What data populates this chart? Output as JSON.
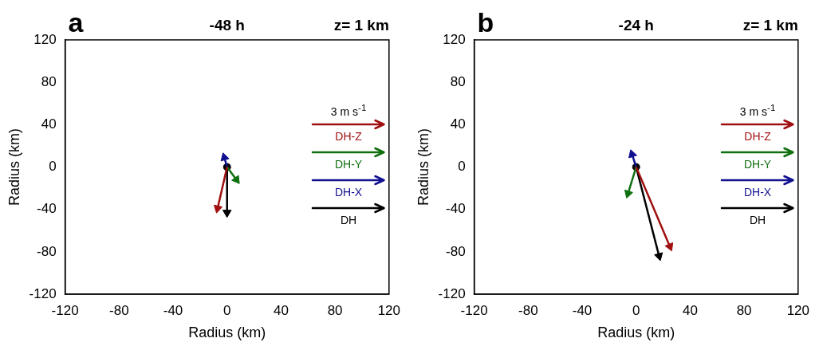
{
  "chart_data": [
    {
      "type": "line",
      "title": "-48 h",
      "annotations": [
        "a",
        "z= 1 km"
      ],
      "xlabel": "Radius (km)",
      "ylabel": "Radius (km)",
      "xlim": [
        -120,
        120
      ],
      "ylim": [
        -120,
        120
      ],
      "xticks": [
        -120,
        -80,
        -40,
        0,
        40,
        80,
        120
      ],
      "yticks": [
        -120,
        -80,
        -40,
        0,
        40,
        80,
        120
      ],
      "grid": false,
      "marker": "triangle",
      "legend": "right",
      "legend_title": "3 m s$^{-1}$",
      "series": [
        {
          "name": "DH-Z",
          "color": "#a01010",
          "x": [
            0,
            -7
          ],
          "values": [
            0,
            -39
          ]
        },
        {
          "name": "DH-Y",
          "color": "#107010",
          "x": [
            0,
            7
          ],
          "values": [
            0,
            -12
          ]
        },
        {
          "name": "DH-X",
          "color": "#101090",
          "x": [
            0,
            -2
          ],
          "values": [
            0,
            9
          ]
        },
        {
          "name": "DH",
          "color": "#000000",
          "x": [
            0,
            0
          ],
          "values": [
            0,
            -43
          ]
        },
        {
          "type": "scatter",
          "color": "#000000",
          "x": [
            0
          ],
          "values": [
            0
          ],
          "marker": "circle"
        }
      ]
    },
    {
      "type": "line",
      "title": "-24 h",
      "annotations": [
        "b",
        "z= 1 km"
      ],
      "xlabel": "Radius (km)",
      "ylabel": "Radius (km)",
      "xlim": [
        -120,
        120
      ],
      "ylim": [
        -120,
        120
      ],
      "xticks": [
        -120,
        -80,
        -40,
        0,
        40,
        80,
        120
      ],
      "yticks": [
        -120,
        -80,
        -40,
        0,
        40,
        80,
        120
      ],
      "grid": false,
      "marker": "triangle",
      "legend": "right",
      "legend_title": "3 m s$^{-1}$",
      "series": [
        {
          "name": "DH-Z",
          "color": "#a01010",
          "x": [
            0,
            25
          ],
          "values": [
            0,
            -75
          ]
        },
        {
          "name": "DH-Y",
          "color": "#107010",
          "x": [
            0,
            -6
          ],
          "values": [
            0,
            -25
          ]
        },
        {
          "name": "DH-X",
          "color": "#101090",
          "x": [
            0,
            -3
          ],
          "values": [
            0,
            12
          ]
        },
        {
          "name": "DH",
          "color": "#000000",
          "x": [
            0,
            17
          ],
          "values": [
            0,
            -84
          ]
        },
        {
          "type": "scatter",
          "color": "#000000",
          "x": [
            0
          ],
          "values": [
            0
          ],
          "marker": "circle"
        }
      ]
    }
  ]
}
